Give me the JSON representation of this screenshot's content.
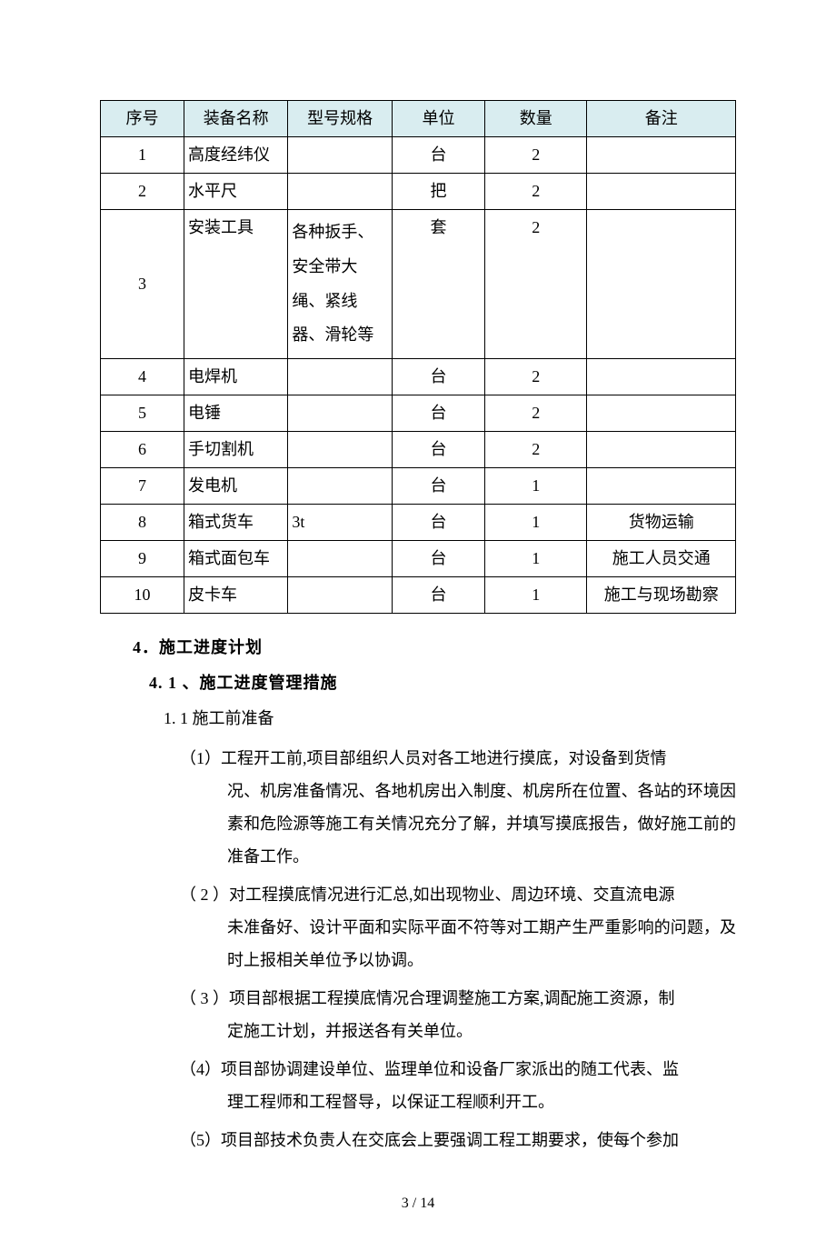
{
  "table": {
    "header_bg": "#d9edf0",
    "border_color": "#000000",
    "columns": [
      "序号",
      "装备名称",
      "型号规格",
      "单位",
      "数量",
      "备注"
    ],
    "rows": [
      {
        "seq": "1",
        "name": "高度经纬仪",
        "spec": "",
        "unit": "台",
        "qty": "2",
        "note": ""
      },
      {
        "seq": "2",
        "name": "水平尺",
        "spec": "",
        "unit": "把",
        "qty": "2",
        "note": ""
      },
      {
        "seq": "3",
        "name": "安装工具",
        "spec": "各种扳手、安全带大绳、紧线器、滑轮等",
        "unit": "套",
        "qty": "2",
        "note": ""
      },
      {
        "seq": "4",
        "name": "电焊机",
        "spec": "",
        "unit": "台",
        "qty": "2",
        "note": ""
      },
      {
        "seq": "5",
        "name": "电锤",
        "spec": "",
        "unit": "台",
        "qty": "2",
        "note": ""
      },
      {
        "seq": "6",
        "name": "手切割机",
        "spec": "",
        "unit": "台",
        "qty": "2",
        "note": ""
      },
      {
        "seq": "7",
        "name": "发电机",
        "spec": "",
        "unit": "台",
        "qty": "1",
        "note": ""
      },
      {
        "seq": "8",
        "name": "箱式货车",
        "spec": "3t",
        "unit": "台",
        "qty": "1",
        "note": "货物运输"
      },
      {
        "seq": "9",
        "name": "箱式面包车",
        "spec": "",
        "unit": "台",
        "qty": "1",
        "note": "施工人员交通"
      },
      {
        "seq": "10",
        "name": "皮卡车",
        "spec": "",
        "unit": "台",
        "qty": "1",
        "note": "施工与现场勘察"
      }
    ]
  },
  "headings": {
    "h4": "4．施工进度计划",
    "h41": "4. 1 、施工进度管理措施",
    "h11": "1. 1 施工前准备"
  },
  "paras": {
    "p1a": "（1）工程开工前,项目部组织人员对各工地进行摸底，对设备到货情",
    "p1b": "况、机房准备情况、各地机房出入制度、机房所在位置、各站的环境因素和危险源等施工有关情况充分了解，并填写摸底报告，做好施工前的准备工作。",
    "p2a": "（ 2 ）对工程摸底情况进行汇总,如出现物业、周边环境、交直流电源",
    "p2b": "未准备好、设计平面和实际平面不符等对工期产生严重影响的问题，及时上报相关单位予以协调。",
    "p3a": "（ 3 ）项目部根据工程摸底情况合理调整施工方案,调配施工资源，制",
    "p3b": "定施工计划，并报送各有关单位。",
    "p4a": "（4）项目部协调建设单位、监理单位和设备厂家派出的随工代表、监",
    "p4b": "理工程师和工程督导，以保证工程顺利开工。",
    "p5a": "（5）项目部技术负责人在交底会上要强调工程工期要求，使每个参加"
  },
  "footer": "3 / 14"
}
